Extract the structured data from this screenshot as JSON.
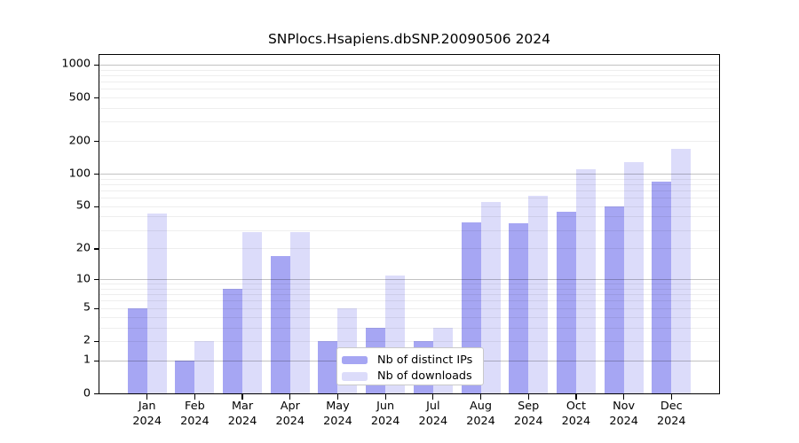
{
  "page": {
    "background": "#ffffff"
  },
  "chart_data": {
    "type": "bar",
    "title": "SNPlocs.Hsapiens.dbSNP.20090506 2024",
    "categories": [
      "Jan 2024",
      "Feb 2024",
      "Mar 2024",
      "Apr 2024",
      "May 2024",
      "Jun 2024",
      "Jul 2024",
      "Aug 2024",
      "Sep 2024",
      "Oct 2024",
      "Nov 2024",
      "Dec 2024"
    ],
    "series": [
      {
        "name": "Nb of distinct IPs",
        "color": "#a6a6f3",
        "values": [
          5,
          1,
          8,
          17,
          2,
          3,
          2,
          36,
          35,
          45,
          50,
          85
        ]
      },
      {
        "name": "Nb of downloads",
        "color": "#dcdcfa",
        "values": [
          43,
          2,
          29,
          29,
          5,
          11,
          3,
          55,
          63,
          110,
          130,
          170
        ]
      }
    ],
    "xlabel": "",
    "ylabel": "",
    "yscale": "log10(1+x)",
    "yticks": [
      0,
      1,
      2,
      5,
      10,
      20,
      50,
      100,
      200,
      500,
      1000
    ],
    "ylim": [
      0,
      1240
    ],
    "grid": "horizontal major (1,10,100,1000) + faint log minors, drawn over bars",
    "legend_position": "inside-bottom-center"
  }
}
